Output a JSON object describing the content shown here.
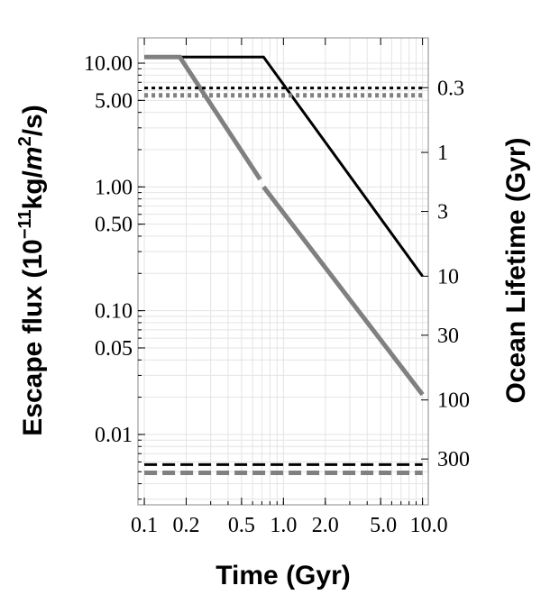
{
  "chart_data": {
    "type": "line",
    "title": "",
    "xlabel": "Time (Gyr)",
    "ylabel": {
      "prefix": "Escape flux (10",
      "exponent": "−11",
      "mid": "kg/",
      "unit_italic": "m",
      "unit_exponent": "2",
      "suffix": "/s)"
    },
    "y2label": "Ocean Lifetime (Gyr)",
    "x_scale": "log",
    "y_scale": "log",
    "xlim": [
      0.09,
      11
    ],
    "ylim": [
      0.0027,
      16
    ],
    "x_ticks": [
      "0.1",
      "0.2",
      "0.5",
      "1.0",
      "2.0",
      "5.0",
      "10.0"
    ],
    "y_ticks": [
      "10.00",
      "5.00",
      "1.00",
      "0.50",
      "0.10",
      "0.05",
      "0.01"
    ],
    "y2_ticks": [
      "0.3",
      "1",
      "3",
      "10",
      "30",
      "100",
      "300"
    ],
    "grid": true,
    "legend": "none",
    "series": [
      {
        "style": "solid",
        "color": "#000000",
        "width": 3,
        "points": [
          [
            0.1,
            11.2
          ],
          [
            0.72,
            11.2
          ],
          [
            10.0,
            0.19
          ]
        ]
      },
      {
        "style": "solid-with-gap",
        "color": "#808080",
        "width": 5,
        "points": [
          [
            0.1,
            11.2
          ],
          [
            0.18,
            11.2
          ],
          [
            0.68,
            1.15
          ],
          [
            0.72,
            1.0
          ],
          [
            10.0,
            0.021
          ]
        ]
      },
      {
        "style": "dotted",
        "color": "#000000",
        "width": 3,
        "points": [
          [
            0.1,
            6.3
          ],
          [
            10.0,
            6.3
          ]
        ]
      },
      {
        "style": "dotted",
        "color": "#808080",
        "width": 5,
        "points": [
          [
            0.1,
            5.5
          ],
          [
            10.0,
            5.5
          ]
        ]
      },
      {
        "style": "dashed",
        "color": "#000000",
        "width": 3,
        "points": [
          [
            0.1,
            0.0057
          ],
          [
            10.0,
            0.0057
          ]
        ]
      },
      {
        "style": "dashed",
        "color": "#808080",
        "width": 5,
        "points": [
          [
            0.1,
            0.0049
          ],
          [
            10.0,
            0.0049
          ]
        ]
      }
    ]
  }
}
